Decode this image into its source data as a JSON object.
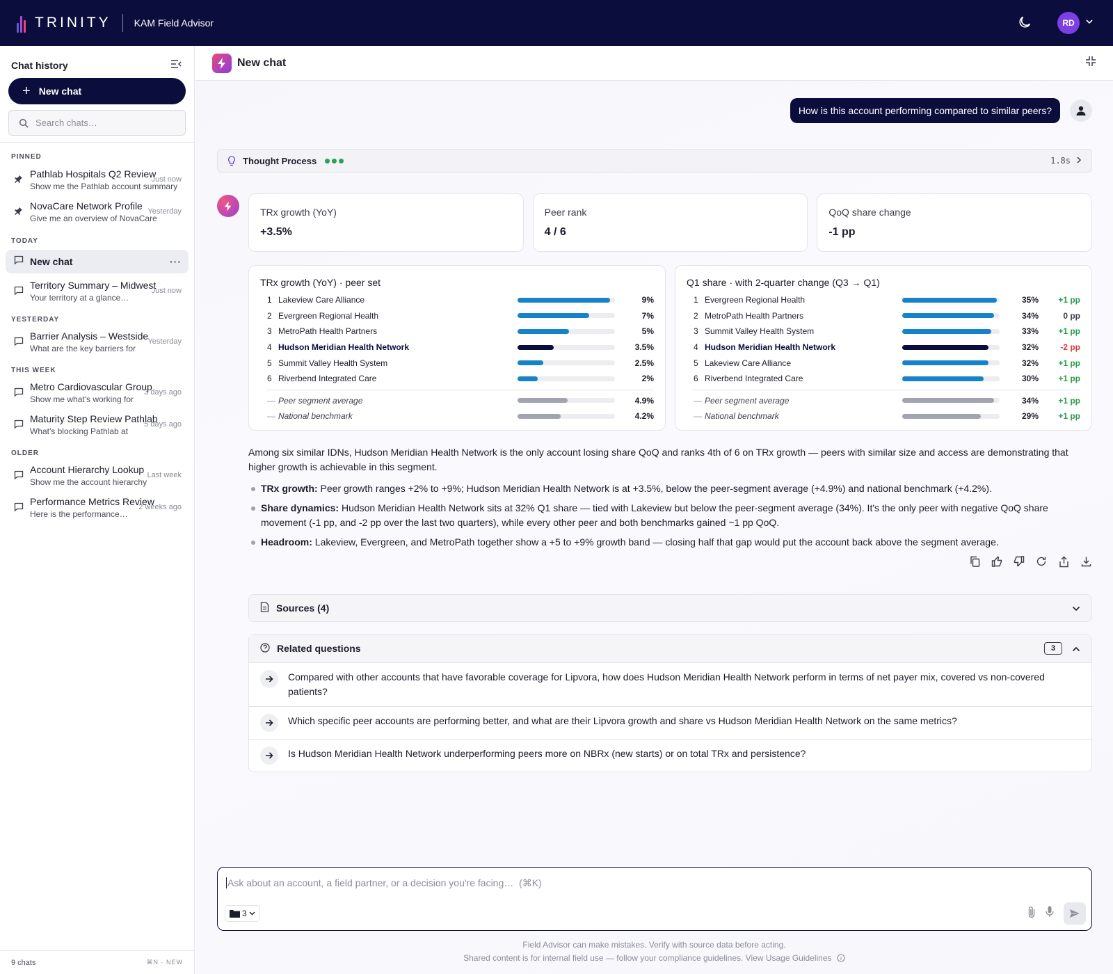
{
  "topbar": {
    "brand": "TRINITY",
    "app_name": "KAM Field Advisor",
    "avatar_initials": "RD"
  },
  "sidebar": {
    "title": "Chat history",
    "new_chat_label": "New chat",
    "search_placeholder": "Search chats…",
    "sections": {
      "pinned": "PINNED",
      "today": "TODAY",
      "yesterday": "YESTERDAY",
      "this_week": "THIS WEEK",
      "older": "OLDER"
    },
    "pinned": [
      {
        "title": "Pathlab Hospitals Q2 Review",
        "preview": "Show me the Pathlab account summary",
        "when": "Just now"
      },
      {
        "title": "NovaCare Network Profile",
        "preview": "Give me an overview of NovaCare",
        "when": "Yesterday"
      }
    ],
    "today": [
      {
        "title": "New chat"
      },
      {
        "title": "Territory Summary – Midwest",
        "preview": "Your territory at a glance…",
        "when": "Just now"
      }
    ],
    "yesterday": [
      {
        "title": "Barrier Analysis – Westside",
        "preview": "What are the key barriers for",
        "when": "Yesterday"
      }
    ],
    "this_week": [
      {
        "title": "Metro Cardiovascular Group",
        "preview": "Show me what's working for",
        "when": "3 days ago"
      },
      {
        "title": "Maturity Step Review Pathlab",
        "preview": "What's blocking Pathlab at",
        "when": "5 days ago"
      }
    ],
    "older": [
      {
        "title": "Account Hierarchy Lookup",
        "preview": "Show me the account hierarchy",
        "when": "Last week"
      },
      {
        "title": "Performance Metrics Review",
        "preview": "Here is the performance…",
        "when": "2 weeks ago"
      }
    ],
    "footer_count": "9 chats",
    "footer_shortcut": "⌘N · NEW"
  },
  "main": {
    "title": "New chat",
    "user_message": "How is this account performing compared to similar peers?",
    "thought": {
      "label": "Thought Process",
      "duration": "1.8s"
    },
    "kpis": [
      {
        "label": "TRx growth (YoY)",
        "value": "+3.5%"
      },
      {
        "label": "Peer rank",
        "value": "4 / 6"
      },
      {
        "label": "QoQ share change",
        "value": "-1 pp"
      }
    ],
    "chart_growth": {
      "title": "TRx growth (YoY) · peer set",
      "rows": [
        {
          "rank": "1",
          "name": "Lakeview Care Alliance",
          "value": "9%",
          "pct": 9
        },
        {
          "rank": "2",
          "name": "Evergreen Regional Health",
          "value": "7%",
          "pct": 7
        },
        {
          "rank": "3",
          "name": "MetroPath Health Partners",
          "value": "5%",
          "pct": 5
        },
        {
          "rank": "4",
          "name": "Hudson Meridian Health Network",
          "value": "3.5%",
          "pct": 3.5
        },
        {
          "rank": "5",
          "name": "Summit Valley Health System",
          "value": "2.5%",
          "pct": 2.5
        },
        {
          "rank": "6",
          "name": "Riverbend Integrated Care",
          "value": "2%",
          "pct": 2
        }
      ],
      "bench": [
        {
          "rank": "—",
          "name": "Peer segment average",
          "value": "4.9%",
          "pct": 4.9
        },
        {
          "rank": "—",
          "name": "National benchmark",
          "value": "4.2%",
          "pct": 4.2
        }
      ]
    },
    "chart_share": {
      "title": "Q1 share · with 2-quarter change (Q3 → Q1)",
      "rows": [
        {
          "rank": "1",
          "name": "Evergreen Regional Health",
          "value": "35%",
          "pct": 35,
          "change": "+1 pp"
        },
        {
          "rank": "2",
          "name": "MetroPath Health Partners",
          "value": "34%",
          "pct": 34,
          "change": "0 pp"
        },
        {
          "rank": "3",
          "name": "Summit Valley Health System",
          "value": "33%",
          "pct": 33,
          "change": "+1 pp"
        },
        {
          "rank": "4",
          "name": "Hudson Meridian Health Network",
          "value": "32%",
          "pct": 32,
          "change": "-2 pp"
        },
        {
          "rank": "5",
          "name": "Lakeview Care Alliance",
          "value": "32%",
          "pct": 32,
          "change": "+1 pp"
        },
        {
          "rank": "6",
          "name": "Riverbend Integrated Care",
          "value": "30%",
          "pct": 30,
          "change": "+1 pp"
        }
      ],
      "bench": [
        {
          "rank": "—",
          "name": "Peer segment average",
          "value": "34%",
          "pct": 34,
          "change": "+1 pp"
        },
        {
          "rank": "—",
          "name": "National benchmark",
          "value": "29%",
          "pct": 29,
          "change": "+1 pp"
        }
      ]
    },
    "answer": {
      "intro": "Among six similar IDNs, Hudson Meridian Health Network is the only account losing share QoQ and ranks 4th of 6 on TRx growth — peers with similar size and access are demonstrating that higher growth is achievable in this segment.",
      "bullets": [
        {
          "label": "TRx growth:",
          "text": " Peer growth ranges +2% to +9%; Hudson Meridian Health Network is at +3.5%, below the peer-segment average (+4.9%) and national benchmark (+4.2%)."
        },
        {
          "label": "Share dynamics:",
          "text": " Hudson Meridian Health Network sits at 32% Q1 share — tied with Lakeview but below the peer-segment average (34%). It's the only peer with negative QoQ share movement (-1 pp, and -2 pp over the last two quarters), while every other peer and both benchmarks gained ~1 pp QoQ."
        },
        {
          "label": "Headroom:",
          "text": " Lakeview, Evergreen, and MetroPath together show a +5 to +9% growth band — closing half that gap would put the account back above the segment average."
        }
      ]
    },
    "sources_label": "Sources (4)",
    "related": {
      "title": "Related questions",
      "count": "3",
      "items": [
        "Compared with other accounts that have favorable coverage for Lipvora, how does Hudson Meridian Health Network perform in terms of net payer mix, covered vs non-covered patients?",
        "Which specific peer accounts are performing better, and what are their Lipvora growth and share vs Hudson Meridian Health Network on the same metrics?",
        "Is Hudson Meridian Health Network underperforming peers more on NBRx (new starts) or on total TRx and persistence?"
      ]
    },
    "composer": {
      "placeholder": "Ask about an account, a field partner, or a decision you're facing…  (⌘K)",
      "context_count": "3"
    },
    "disclaimer_1": "Field Advisor can make mistakes. Verify with source data before acting.",
    "disclaimer_2": "Shared content is for internal field use — follow your compliance guidelines. View Usage Guidelines"
  },
  "colors": {
    "navy": "#0b0d3c",
    "bar_blue": "#1483c9",
    "positive": "#2a9a4a",
    "negative": "#d63a3a",
    "avatar_purple": "#7b3fe4"
  }
}
